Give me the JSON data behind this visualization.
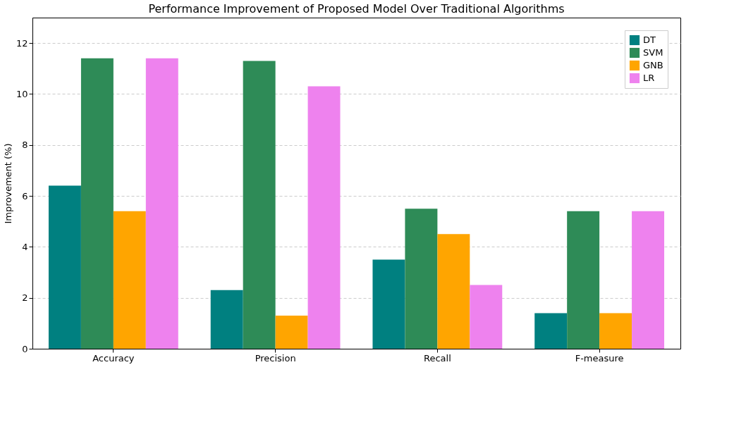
{
  "chart_data": {
    "type": "bar",
    "title": "Performance Improvement of Proposed Model Over Traditional Algorithms",
    "ylabel": "Improvement (%)",
    "categories": [
      "Accuracy",
      "Precision",
      "Recall",
      "F-measure"
    ],
    "series": [
      {
        "name": "DT",
        "color": "#008080",
        "values": [
          6.4,
          2.3,
          3.5,
          1.4
        ]
      },
      {
        "name": "SVM",
        "color": "#2e8b57",
        "values": [
          11.4,
          11.3,
          5.5,
          5.4
        ]
      },
      {
        "name": "GNB",
        "color": "#ffa500",
        "values": [
          5.4,
          1.3,
          4.5,
          1.4
        ]
      },
      {
        "name": "LR",
        "color": "#ee82ee",
        "values": [
          11.4,
          10.3,
          2.5,
          5.4
        ]
      }
    ],
    "ylim": [
      0,
      13
    ],
    "yticks": [
      0,
      2,
      4,
      6,
      8,
      10,
      12
    ],
    "grid": "y",
    "legend": "top right"
  }
}
